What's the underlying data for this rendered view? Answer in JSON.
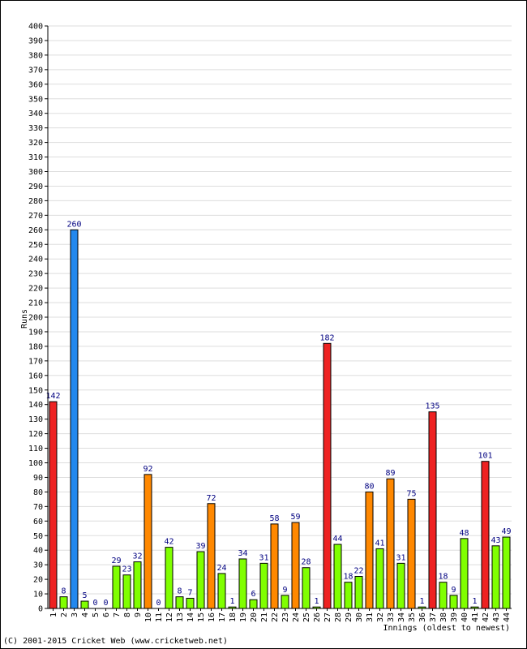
{
  "chart_data": {
    "type": "bar",
    "title": "",
    "xlabel": "Innings (oldest to newest)",
    "ylabel": "Runs",
    "ylim": [
      0,
      400
    ],
    "ytick_step": 10,
    "grid": true,
    "categories": [
      "1",
      "2",
      "3",
      "4",
      "5",
      "6",
      "7",
      "8",
      "9",
      "10",
      "11",
      "12",
      "13",
      "14",
      "15",
      "16",
      "17",
      "18",
      "19",
      "20",
      "21",
      "22",
      "23",
      "24",
      "25",
      "26",
      "27",
      "28",
      "29",
      "30",
      "31",
      "32",
      "33",
      "34",
      "35",
      "36",
      "37",
      "38",
      "39",
      "40",
      "41",
      "42",
      "43",
      "44"
    ],
    "values": [
      142,
      8,
      260,
      5,
      0,
      0,
      29,
      23,
      32,
      92,
      0,
      42,
      8,
      7,
      39,
      72,
      24,
      1,
      34,
      6,
      31,
      58,
      9,
      59,
      28,
      1,
      182,
      44,
      18,
      22,
      80,
      41,
      89,
      31,
      75,
      1,
      135,
      18,
      9,
      48,
      1,
      101,
      43,
      49
    ],
    "value_labels": [
      "142",
      "8",
      "260",
      "5",
      "0",
      "0",
      "29",
      "23",
      "32",
      "92",
      "0",
      "42",
      "8",
      "7",
      "39",
      "72",
      "24",
      "1",
      "34",
      "6",
      "31",
      "58",
      "9",
      "59",
      "28",
      "1",
      "182",
      "44",
      "18",
      "22",
      "80",
      "41",
      "89",
      "31",
      "75",
      "1",
      "135",
      "18",
      "9",
      "48",
      "1",
      "101",
      "43",
      "49"
    ],
    "colors": {
      "under_50": "#80ff00",
      "fifty": "#ff8800",
      "hundred": "#ee2222",
      "double_hundred": "#2288ee",
      "value_label": "#000080",
      "grid": "#dddddd",
      "border": "#000000"
    }
  },
  "footer": {
    "copyright": "(C) 2001-2015 Cricket Web (www.cricketweb.net)"
  }
}
